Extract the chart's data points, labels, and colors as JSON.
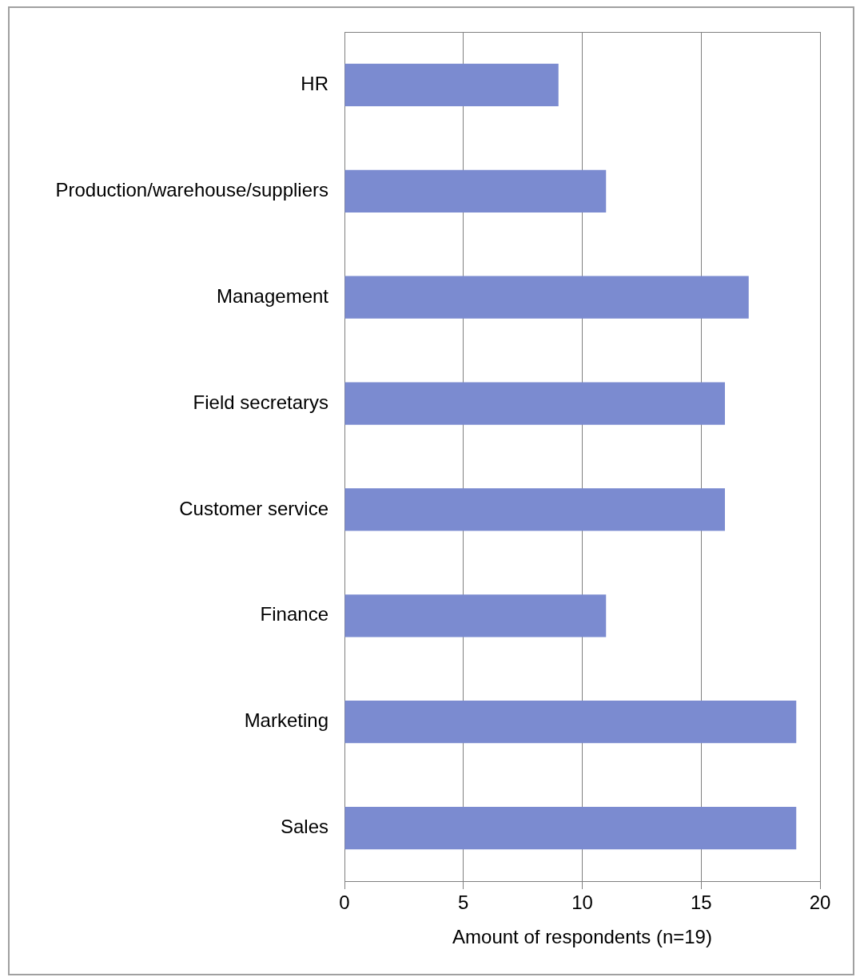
{
  "chart_data": {
    "type": "bar",
    "orientation": "horizontal",
    "categories": [
      "HR",
      "Production/warehouse/suppliers",
      "Management",
      "Field secretarys",
      "Customer service",
      "Finance",
      "Marketing",
      "Sales"
    ],
    "values": [
      9,
      11,
      17,
      16,
      16,
      11,
      19,
      19
    ],
    "color": "#7b8bd0",
    "xlabel": "Amount of respondents (n=19)",
    "xlim": [
      0,
      20
    ],
    "xticks": [
      0,
      5,
      10,
      15,
      20
    ],
    "grid": "x",
    "legend": false
  }
}
